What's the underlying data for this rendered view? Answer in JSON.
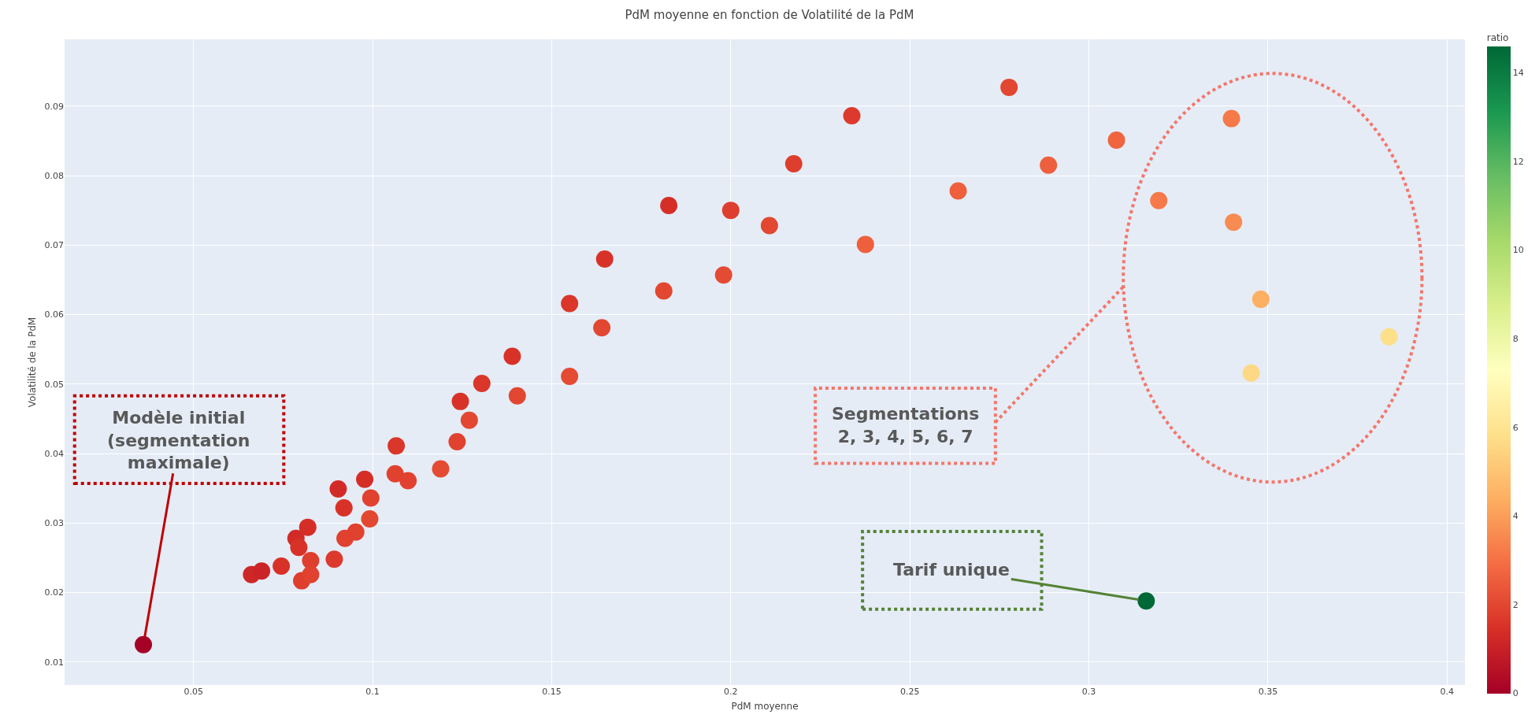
{
  "chart_data": {
    "type": "scatter",
    "title": "PdM moyenne en fonction de Volatilité de la PdM",
    "xlabel": "PdM moyenne",
    "ylabel": "Volatilité de la PdM",
    "clabel": "ratio",
    "x": [
      0.036,
      0.0662,
      0.069,
      0.0745,
      0.0786,
      0.0794,
      0.0819,
      0.0827,
      0.0802,
      0.0827,
      0.0893,
      0.0904,
      0.092,
      0.0923,
      0.0953,
      0.0978,
      0.0995,
      0.0992,
      0.1066,
      0.1063,
      0.1099,
      0.119,
      0.1236,
      0.1245,
      0.127,
      0.1305,
      0.139,
      0.1404,
      0.155,
      0.155,
      0.164,
      0.1648,
      0.1813,
      0.1827,
      0.198,
      0.2,
      0.2108,
      0.2176,
      0.2338,
      0.2376,
      0.2635,
      0.2777,
      0.2887,
      0.3077,
      0.3195,
      0.3398,
      0.3404,
      0.348,
      0.3453,
      0.3838,
      0.316
    ],
    "values": [
      0.0125,
      0.0226,
      0.0231,
      0.0238,
      0.0278,
      0.0265,
      0.0294,
      0.0246,
      0.0217,
      0.0226,
      0.0248,
      0.0349,
      0.0322,
      0.0278,
      0.0287,
      0.0363,
      0.0336,
      0.0306,
      0.0411,
      0.0371,
      0.0361,
      0.0378,
      0.0417,
      0.0475,
      0.0448,
      0.0501,
      0.054,
      0.0483,
      0.0511,
      0.0616,
      0.0581,
      0.068,
      0.0634,
      0.0757,
      0.0657,
      0.075,
      0.0728,
      0.0817,
      0.0886,
      0.0701,
      0.0778,
      0.0927,
      0.0815,
      0.0851,
      0.0764,
      0.0882,
      0.0733,
      0.0622,
      0.0516,
      0.0568,
      0.0188
    ],
    "cvalues": [
      0,
      1.2,
      1.1,
      1.5,
      1.3,
      1.5,
      1.4,
      1.8,
      1.8,
      1.9,
      1.7,
      1.3,
      1.5,
      1.9,
      1.9,
      1.4,
      1.9,
      2,
      1.6,
      1.9,
      1.9,
      2.1,
      1.9,
      1.5,
      2,
      1.6,
      1.5,
      2,
      2.1,
      1.6,
      2,
      1.5,
      2,
      1.4,
      2.1,
      1.8,
      2,
      1.8,
      1.7,
      2.6,
      2.6,
      2,
      2.6,
      2.7,
      3.2,
      3.2,
      3.6,
      4.4,
      5.6,
      5.8,
      14.6
    ],
    "clim": [
      0,
      14.6
    ],
    "cticks": [
      0,
      2,
      4,
      6,
      8,
      10,
      12,
      14
    ],
    "xlim": [
      0.014,
      0.405
    ],
    "xticks": [
      0.05,
      0.1,
      0.15,
      0.2,
      0.25,
      0.3,
      0.35,
      0.4
    ],
    "ylim": [
      0.0067,
      0.0996
    ],
    "yticks": [
      0.01,
      0.02,
      0.03,
      0.04,
      0.05,
      0.06,
      0.07,
      0.08,
      0.09
    ],
    "grid": true,
    "marker": "circle",
    "annotations": [
      {
        "text": "Modèle initial\n(segmentation\nmaximale)",
        "x": 0.036,
        "y": 0.0125
      },
      "Segmentations\n2, 3, 4, 5, 6, 7",
      {
        "text": "Tarif unique",
        "x": 0.316,
        "y": 0.0188
      }
    ]
  }
}
